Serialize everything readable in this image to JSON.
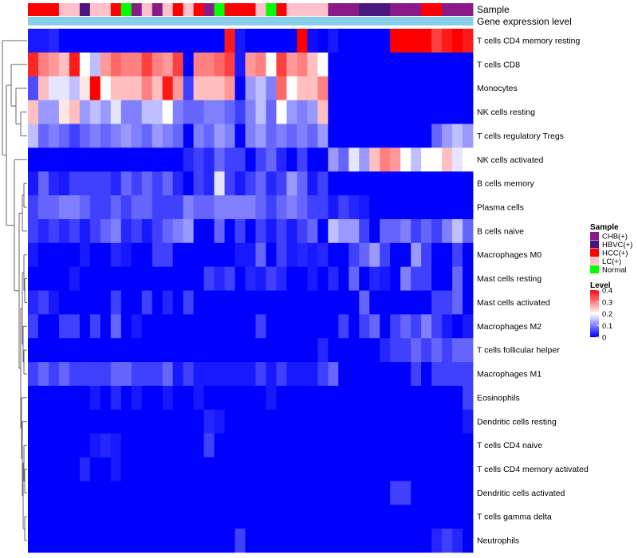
{
  "chart_data": {
    "type": "heatmap",
    "annotation_labels": [
      "Sample",
      "Gene expression level"
    ],
    "rows": [
      "T cells CD4 memory resting",
      "T cells CD8",
      "Monocytes",
      "NK cells resting",
      "T cells regulatory  Tregs",
      "NK cells activated",
      "B cells memory",
      "Plasma cells",
      "B cells naive",
      "Macrophages M0",
      "Mast cells resting",
      "Mast cells activated",
      "Macrophages M2",
      "T cells follicular helper",
      "Macrophages M1",
      "Eosinophils",
      "Dendritic cells resting",
      "T cells CD4 naive",
      "T cells CD4 memory activated",
      "Dendritic cells activated",
      "T cells gamma delta",
      "Neutrophils"
    ],
    "sample_groups": [
      "HCC(+)",
      "HCC(+)",
      "HCC(+)",
      "LC(+)",
      "LC(+)",
      "HBVC(+)",
      "LC(+)",
      "LC(+)",
      "HCC(+)",
      "Normal",
      "CHB(+)",
      "LC(+)",
      "CHB(+)",
      "LC(+)",
      "HCC(+)",
      "LC(+)",
      "HCC(+)",
      "CHB(+)",
      "Normal",
      "HCC(+)",
      "HCC(+)",
      "HCC(+)",
      "LC(+)",
      "Normal",
      "HCC(+)",
      "LC(+)",
      "LC(+)",
      "LC(+)",
      "LC(+)",
      "CHB(+)",
      "CHB(+)",
      "CHB(+)",
      "HBVC(+)",
      "HBVC(+)",
      "HBVC(+)",
      "CHB(+)",
      "CHB(+)",
      "CHB(+)",
      "HCC(+)",
      "HCC(+)",
      "CHB(+)",
      "CHB(+)",
      "CHB(+)"
    ],
    "values": [
      [
        0.02,
        0.02,
        0.03,
        0,
        0,
        0,
        0,
        0,
        0,
        0,
        0,
        0,
        0,
        0,
        0,
        0,
        0,
        0,
        0,
        0.38,
        0.02,
        0,
        0,
        0,
        0,
        0,
        0.4,
        0.01,
        0,
        0.02,
        0,
        0,
        0,
        0,
        0,
        0.4,
        0.4,
        0.4,
        0.4,
        0.35,
        0.38,
        0.4,
        0.38
      ],
      [
        0.37,
        0.3,
        0.28,
        0.25,
        0.38,
        0.2,
        0.15,
        0.28,
        0.32,
        0.3,
        0.3,
        0.35,
        0.3,
        0.28,
        0.35,
        0,
        0.3,
        0.3,
        0.32,
        0.35,
        0.02,
        0.28,
        0.3,
        0.2,
        0.35,
        0.28,
        0.3,
        0.25,
        0.2,
        0,
        0,
        0,
        0,
        0,
        0,
        0,
        0,
        0,
        0,
        0,
        0,
        0,
        0
      ],
      [
        0.06,
        0.25,
        0.18,
        0.18,
        0.15,
        0.22,
        0.4,
        0.2,
        0.25,
        0.25,
        0.25,
        0.3,
        0.25,
        0.38,
        0.28,
        0.05,
        0.25,
        0.25,
        0.25,
        0.28,
        0,
        0.12,
        0.15,
        0.1,
        0.32,
        0.2,
        0.25,
        0.25,
        0.3,
        0,
        0,
        0,
        0,
        0,
        0,
        0,
        0,
        0,
        0,
        0,
        0,
        0,
        0
      ],
      [
        0.25,
        0.12,
        0.12,
        0.22,
        0.25,
        0.12,
        0.15,
        0.12,
        0.18,
        0.1,
        0.1,
        0.15,
        0.15,
        0.2,
        0.1,
        0.08,
        0.08,
        0.1,
        0.1,
        0.08,
        0.05,
        0.1,
        0.15,
        0.08,
        0.2,
        0.12,
        0.1,
        0.12,
        0.25,
        0,
        0,
        0,
        0,
        0,
        0,
        0,
        0,
        0,
        0,
        0,
        0,
        0,
        0
      ],
      [
        0.15,
        0.08,
        0.1,
        0.08,
        0.05,
        0.08,
        0.1,
        0.08,
        0.1,
        0.12,
        0.1,
        0.08,
        0.12,
        0.1,
        0.08,
        0,
        0.1,
        0.08,
        0.12,
        0.1,
        0,
        0.1,
        0.12,
        0.08,
        0.1,
        0.08,
        0.1,
        0.08,
        0.12,
        0,
        0,
        0,
        0,
        0,
        0,
        0,
        0,
        0,
        0,
        0.08,
        0.12,
        0.15,
        0.12
      ],
      [
        0,
        0,
        0,
        0,
        0,
        0,
        0,
        0,
        0,
        0,
        0,
        0,
        0,
        0,
        0,
        0.03,
        0.05,
        0.03,
        0.08,
        0.05,
        0.05,
        0,
        0.05,
        0.08,
        0.03,
        0,
        0.05,
        0,
        0,
        0.12,
        0.08,
        0.18,
        0.12,
        0.25,
        0.3,
        0.28,
        0.2,
        0.15,
        0.2,
        0.2,
        0.25,
        0.18,
        0.2
      ],
      [
        0.02,
        0.08,
        0.03,
        0.02,
        0.05,
        0.05,
        0.05,
        0.05,
        0.03,
        0.08,
        0.05,
        0.08,
        0.05,
        0.08,
        0.03,
        0,
        0.05,
        0.03,
        0.18,
        0.05,
        0.02,
        0.05,
        0.08,
        0.03,
        0.05,
        0.12,
        0.08,
        0.02,
        0.05,
        0,
        0,
        0,
        0,
        0,
        0,
        0,
        0,
        0,
        0,
        0,
        0,
        0,
        0
      ],
      [
        0.05,
        0.08,
        0.08,
        0.1,
        0.1,
        0.08,
        0.05,
        0.05,
        0.08,
        0.05,
        0.08,
        0.08,
        0.05,
        0.05,
        0.05,
        0.1,
        0.08,
        0.08,
        0.1,
        0.1,
        0.1,
        0.1,
        0.08,
        0.05,
        0.08,
        0.1,
        0.08,
        0.05,
        0.05,
        0.02,
        0.05,
        0.03,
        0.02,
        0,
        0,
        0,
        0,
        0,
        0,
        0,
        0,
        0,
        0
      ],
      [
        0.05,
        0.03,
        0.05,
        0.03,
        0.05,
        0.02,
        0.05,
        0.08,
        0.1,
        0.03,
        0.05,
        0.02,
        0.05,
        0.08,
        0.1,
        0.12,
        0,
        0,
        0.08,
        0,
        0.05,
        0,
        0.05,
        0.02,
        0.05,
        0.02,
        0.05,
        0.08,
        0,
        0.15,
        0.12,
        0.12,
        0.05,
        0,
        0.08,
        0.08,
        0.1,
        0.05,
        0.08,
        0.05,
        0.1,
        0.15,
        0.08
      ],
      [
        0.02,
        0,
        0,
        0,
        0,
        0.02,
        0,
        0,
        0.03,
        0.02,
        0,
        0,
        0.05,
        0.05,
        0,
        0,
        0,
        0,
        0,
        0,
        0.02,
        0.02,
        0.08,
        0,
        0.05,
        0.02,
        0.03,
        0.02,
        0.03,
        0,
        0,
        0.05,
        0.08,
        0.12,
        0.05,
        0,
        0,
        0.12,
        0.05,
        0,
        0,
        0.05,
        0
      ],
      [
        0,
        0,
        0,
        0,
        0.02,
        0,
        0,
        0,
        0,
        0,
        0,
        0,
        0,
        0,
        0,
        0,
        0,
        0.05,
        0.03,
        0.05,
        0,
        0.03,
        0.02,
        0.05,
        0.03,
        0,
        0,
        0.02,
        0,
        0.03,
        0,
        0.08,
        0,
        0.03,
        0.02,
        0,
        0.1,
        0.05,
        0.05,
        0,
        0,
        0.08,
        0
      ],
      [
        0.03,
        0.05,
        0.02,
        0,
        0,
        0,
        0,
        0,
        0.05,
        0,
        0,
        0.05,
        0,
        0.03,
        0,
        0.05,
        0,
        0,
        0,
        0,
        0,
        0,
        0,
        0,
        0,
        0,
        0,
        0,
        0,
        0,
        0,
        0,
        0.08,
        0,
        0,
        0,
        0,
        0,
        0,
        0.05,
        0.05,
        0.08,
        0
      ],
      [
        0.05,
        0,
        0,
        0.05,
        0.05,
        0,
        0.05,
        0,
        0.08,
        0,
        0.02,
        0,
        0,
        0,
        0,
        0,
        0,
        0,
        0,
        0,
        0,
        0,
        0.05,
        0,
        0,
        0,
        0,
        0,
        0,
        0,
        0.05,
        0,
        0.05,
        0.08,
        0,
        0.05,
        0.08,
        0.05,
        0.1,
        0.05,
        0.02,
        0,
        0.02
      ],
      [
        0,
        0,
        0,
        0,
        0,
        0,
        0,
        0,
        0,
        0,
        0,
        0,
        0,
        0,
        0,
        0,
        0,
        0,
        0,
        0,
        0,
        0,
        0,
        0,
        0,
        0,
        0,
        0,
        0.03,
        0,
        0,
        0,
        0,
        0,
        0.03,
        0.05,
        0.05,
        0.08,
        0.05,
        0.08,
        0.05,
        0.08,
        0.08
      ],
      [
        0.05,
        0.08,
        0.05,
        0.08,
        0.05,
        0.05,
        0.05,
        0.05,
        0.08,
        0.08,
        0.05,
        0.05,
        0.05,
        0.08,
        0.02,
        0.05,
        0.02,
        0.02,
        0.02,
        0.02,
        0.02,
        0.02,
        0.05,
        0.02,
        0.05,
        0.02,
        0.02,
        0.02,
        0.05,
        0.08,
        0,
        0,
        0,
        0,
        0,
        0,
        0,
        0.05,
        0,
        0.05,
        0.05,
        0.05,
        0.05
      ],
      [
        0,
        0,
        0,
        0,
        0,
        0,
        0.02,
        0,
        0.03,
        0,
        0.02,
        0,
        0,
        0.02,
        0,
        0,
        0.02,
        0,
        0,
        0,
        0,
        0,
        0,
        0.02,
        0,
        0,
        0,
        0,
        0,
        0,
        0,
        0,
        0,
        0,
        0,
        0,
        0,
        0,
        0,
        0,
        0,
        0,
        0.05
      ],
      [
        0,
        0,
        0,
        0,
        0,
        0,
        0,
        0,
        0,
        0,
        0,
        0,
        0,
        0,
        0,
        0,
        0,
        0.03,
        0.02,
        0,
        0,
        0,
        0,
        0,
        0,
        0,
        0,
        0,
        0,
        0,
        0,
        0,
        0,
        0,
        0,
        0,
        0,
        0,
        0,
        0,
        0,
        0,
        0.02
      ],
      [
        0,
        0,
        0,
        0,
        0,
        0,
        0.02,
        0.03,
        0.02,
        0,
        0,
        0,
        0,
        0,
        0,
        0,
        0,
        0.05,
        0,
        0,
        0,
        0,
        0,
        0,
        0,
        0,
        0,
        0,
        0,
        0,
        0,
        0,
        0,
        0,
        0,
        0,
        0,
        0,
        0,
        0,
        0,
        0,
        0
      ],
      [
        0,
        0,
        0,
        0,
        0,
        0.03,
        0,
        0,
        0.02,
        0,
        0,
        0,
        0,
        0,
        0,
        0,
        0,
        0,
        0,
        0,
        0,
        0,
        0,
        0,
        0,
        0,
        0,
        0,
        0,
        0,
        0,
        0,
        0,
        0,
        0,
        0,
        0,
        0,
        0,
        0,
        0,
        0,
        0
      ],
      [
        0,
        0,
        0,
        0,
        0,
        0,
        0,
        0,
        0,
        0,
        0,
        0,
        0,
        0,
        0,
        0,
        0,
        0,
        0,
        0,
        0,
        0,
        0,
        0,
        0,
        0,
        0,
        0,
        0,
        0,
        0,
        0,
        0,
        0,
        0,
        0.05,
        0.05,
        0,
        0,
        0,
        0,
        0,
        0
      ],
      [
        0,
        0,
        0,
        0,
        0,
        0,
        0,
        0,
        0,
        0,
        0,
        0,
        0,
        0,
        0,
        0,
        0,
        0,
        0,
        0,
        0,
        0,
        0,
        0,
        0,
        0,
        0,
        0,
        0,
        0,
        0,
        0,
        0,
        0,
        0,
        0,
        0,
        0,
        0,
        0,
        0,
        0,
        0
      ],
      [
        0,
        0,
        0,
        0,
        0,
        0,
        0,
        0,
        0,
        0,
        0,
        0,
        0,
        0,
        0,
        0,
        0,
        0,
        0,
        0,
        0.05,
        0,
        0,
        0,
        0,
        0,
        0,
        0,
        0,
        0,
        0,
        0,
        0,
        0,
        0,
        0,
        0,
        0,
        0,
        0.03,
        0.05,
        0.03,
        0
      ]
    ],
    "legend_sample": {
      "title": "Sample",
      "items": [
        {
          "label": "CHB(+)",
          "color": "#8b1a89"
        },
        {
          "label": "HBVC(+)",
          "color": "#4b167d"
        },
        {
          "label": "HCC(+)",
          "color": "#ff0000"
        },
        {
          "label": "LC(+)",
          "color": "#ffc0cb"
        },
        {
          "label": "Normal",
          "color": "#00ff00"
        }
      ]
    },
    "legend_level": {
      "title": "Level",
      "ticks": [
        "0.4",
        "0.3",
        "0.2",
        "0.1",
        "0"
      ],
      "tick_values": [
        0.4,
        0.3,
        0.2,
        0.1,
        0
      ]
    },
    "colors": {
      "low": "#0000ff",
      "mid": "#ffffff",
      "high": "#ff0000",
      "gene_bar": "#87ceeb"
    },
    "vmax": 0.4
  }
}
